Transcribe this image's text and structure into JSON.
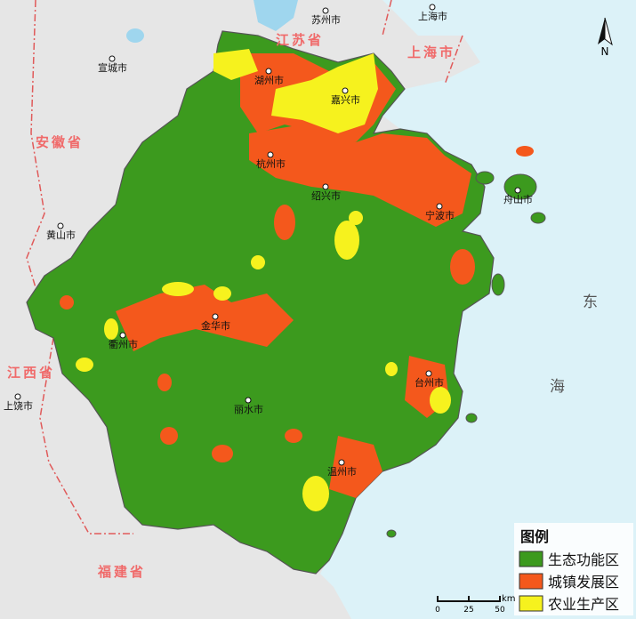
{
  "provinces": [
    "江苏省",
    "上海市",
    "安徽省",
    "江西省",
    "福建省"
  ],
  "cities": [
    "苏州市",
    "上海市",
    "宣城市",
    "湖州市",
    "嘉兴市",
    "杭州市",
    "绍兴市",
    "宁波市",
    "舟山市",
    "黄山市",
    "金华市",
    "衢州市",
    "台州市",
    "丽水市",
    "温州市",
    "上饶市"
  ],
  "sea": [
    "东",
    "海"
  ],
  "north": "N",
  "legend": {
    "title": "图例",
    "items": [
      {
        "name": "生态功能区",
        "color": "#3c9a1e"
      },
      {
        "name": "城镇发展区",
        "color": "#f4581c"
      },
      {
        "name": "农业生产区",
        "color": "#f6f21e"
      }
    ]
  },
  "scale": {
    "unit": "km",
    "ticks": [
      0,
      25,
      50
    ]
  }
}
